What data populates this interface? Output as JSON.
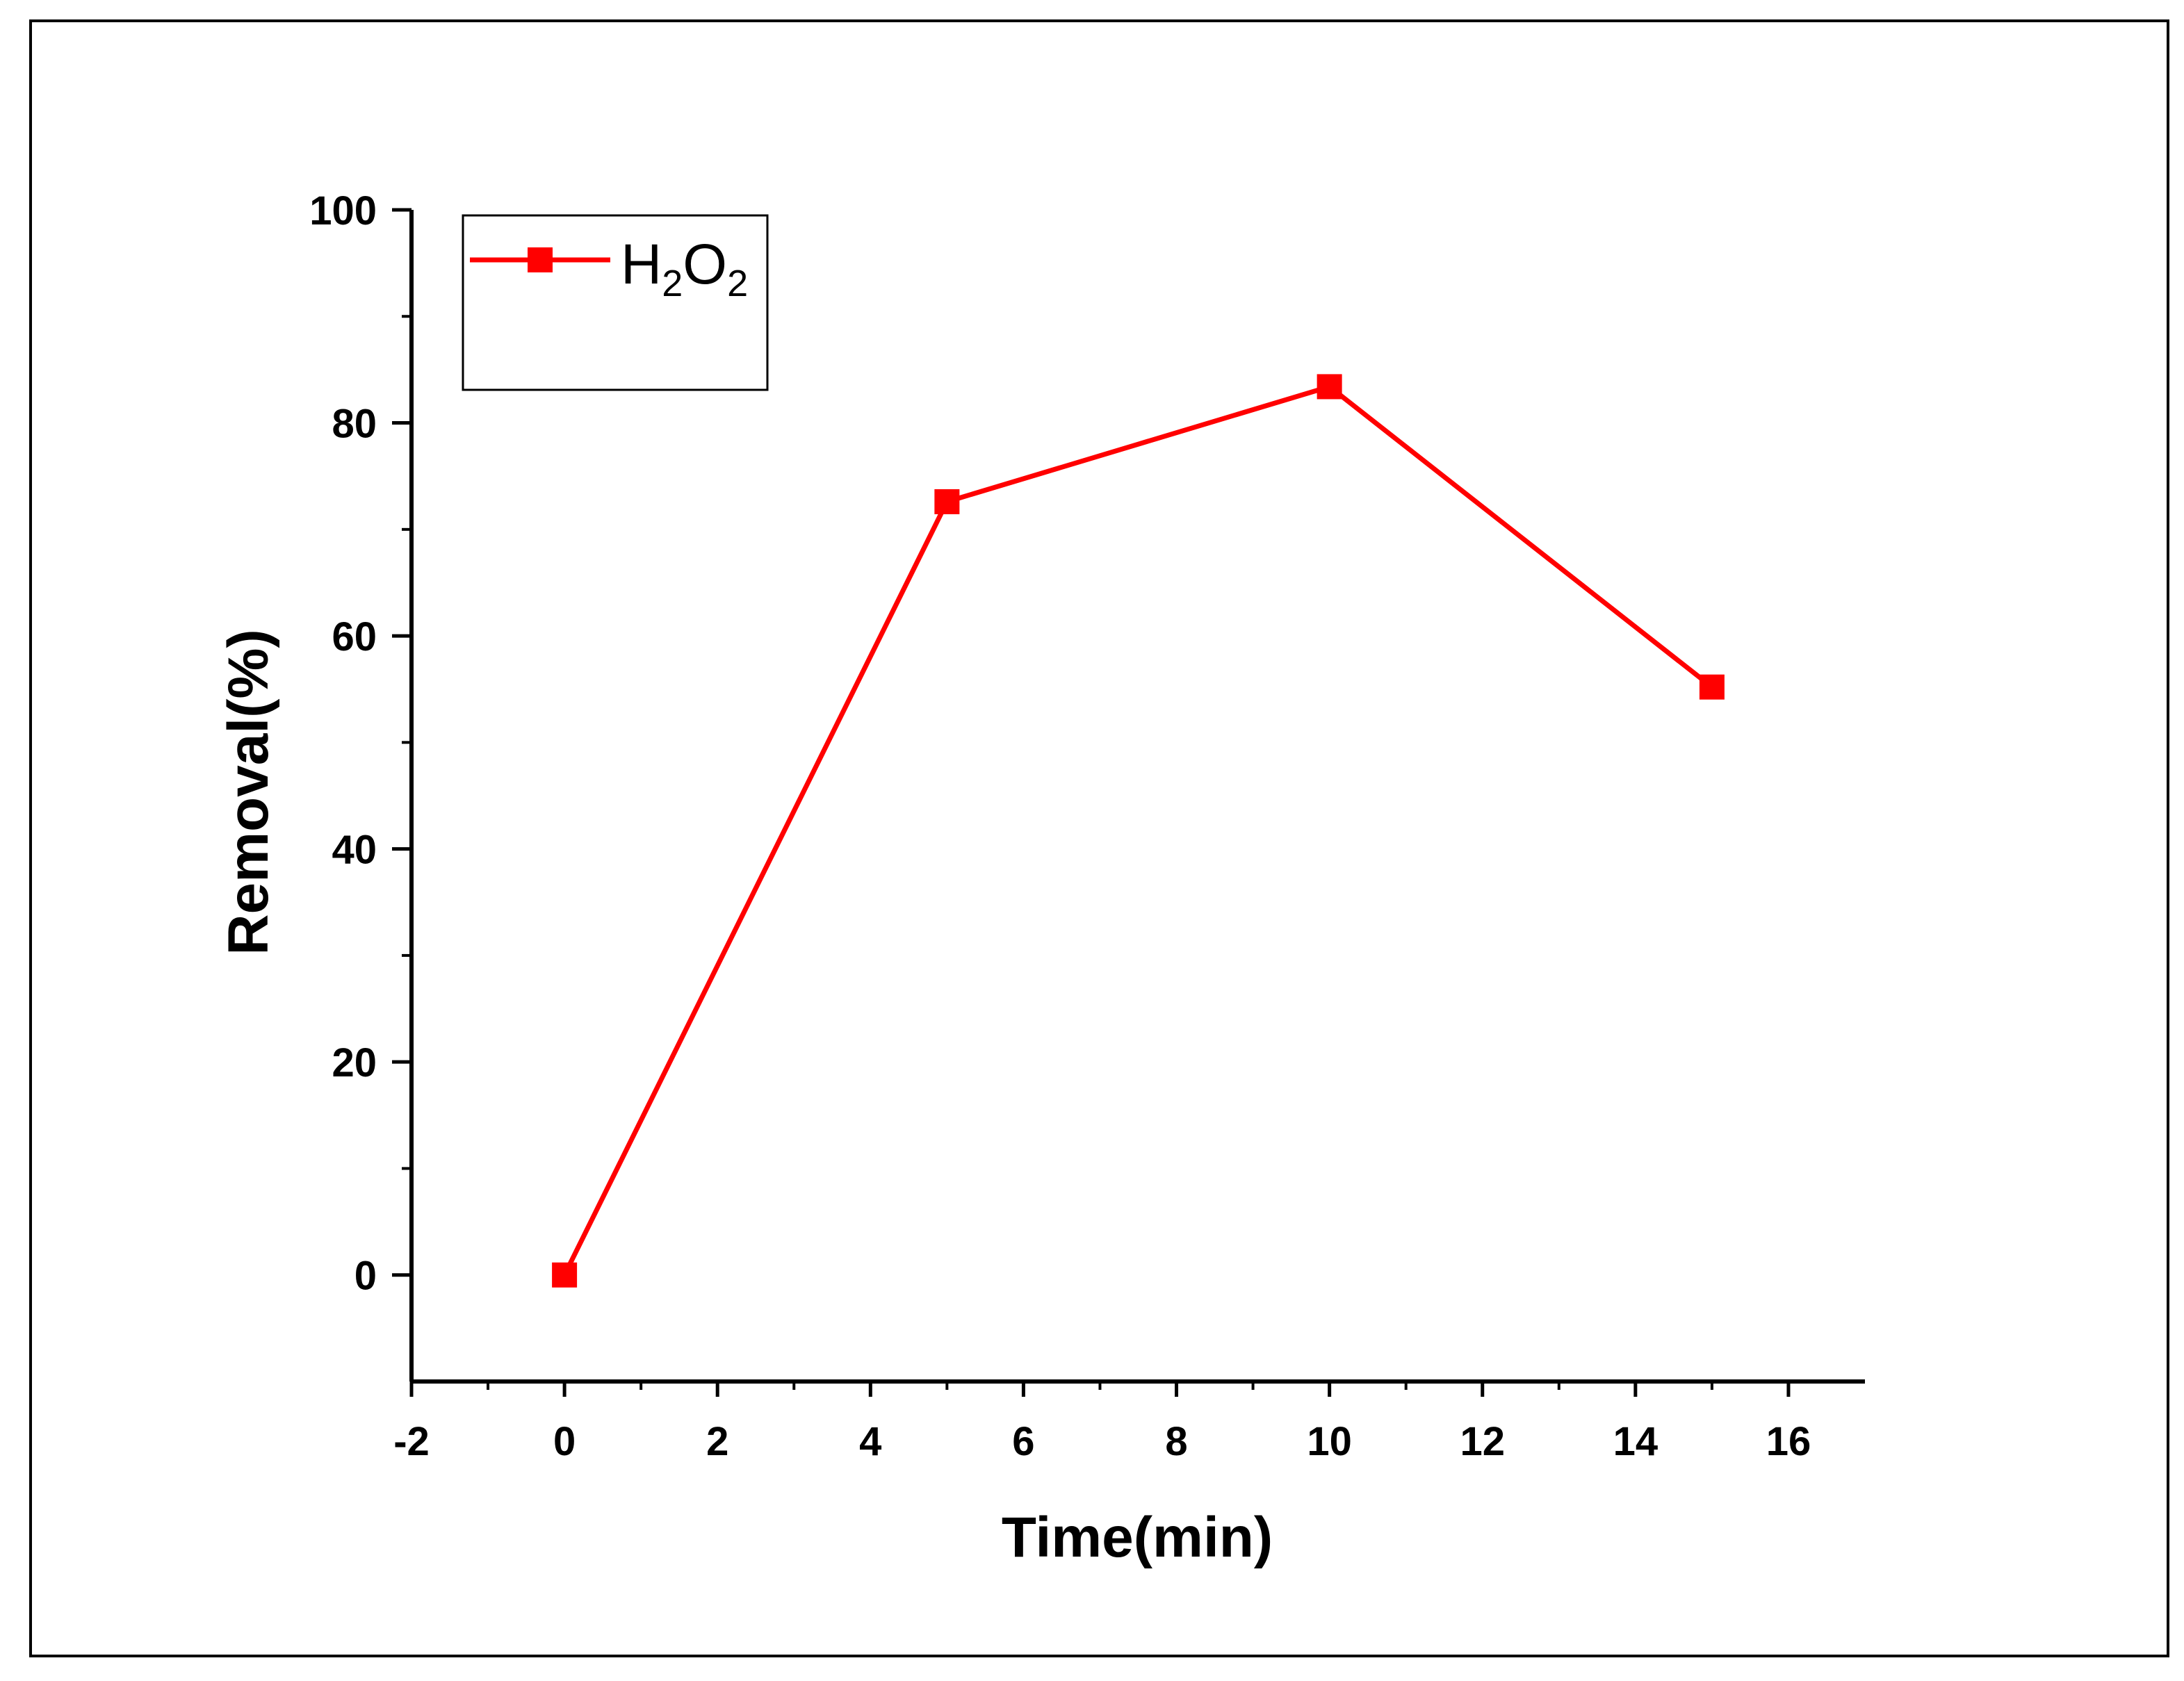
{
  "chart_data": {
    "type": "line",
    "xlabel": "Time(min)",
    "ylabel": "Removal(%)",
    "xlim": [
      -2,
      17
    ],
    "ylim": [
      -10,
      100
    ],
    "x_ticks": [
      -2,
      0,
      2,
      4,
      6,
      8,
      10,
      12,
      14,
      16
    ],
    "x_tick_labels": [
      "-2",
      "0",
      "2",
      "4",
      "6",
      "8",
      "10",
      "12",
      "14",
      "16"
    ],
    "y_ticks": [
      0,
      20,
      40,
      60,
      80,
      100
    ],
    "y_tick_labels": [
      "0",
      "20",
      "40",
      "60",
      "80",
      "100"
    ],
    "grid": false,
    "legend_position": "top-left",
    "series": [
      {
        "name": "H2O2",
        "legend_main": "H",
        "legend_sub1": "2",
        "legend_mid": "O",
        "legend_sub2": "2",
        "color": "#ff0000",
        "marker": "square",
        "x": [
          0,
          5,
          10,
          15
        ],
        "y": [
          0,
          72.6,
          83.4,
          55.2
        ]
      }
    ]
  }
}
